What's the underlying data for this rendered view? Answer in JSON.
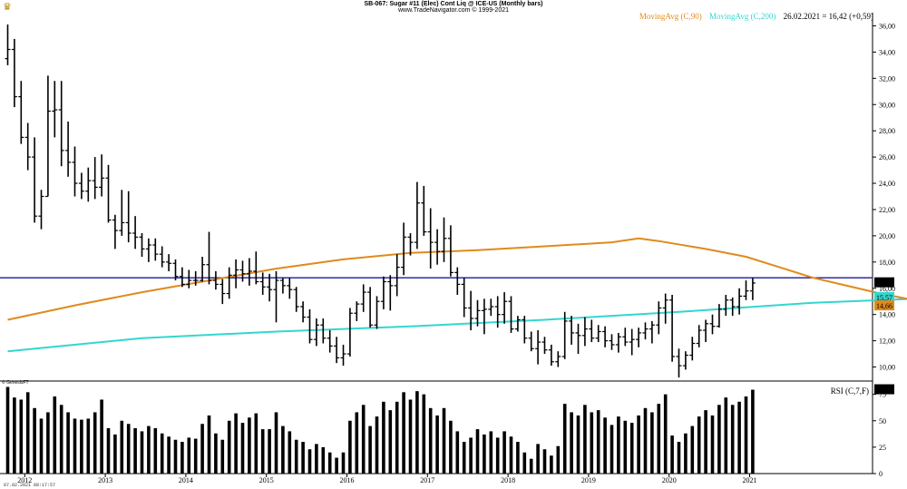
{
  "header": {
    "title": "SB-067: Sugar #11 (Elec) Cont Liq @ ICE-US (Monthly bars)",
    "subtitle": "www.TradeNavigator.com © 1999-2021"
  },
  "legend": {
    "ma90": "MovingAvg (C,90)",
    "ma200": "MovingAvg (C,200)",
    "quote": "26.02.2021 = 16,42 (+0,59)"
  },
  "rsi_label": "RSI (C,7,F)",
  "credit": "© GenesisFT",
  "timestamp": "07.02.2021 08:17:57",
  "colors": {
    "bars": "#000000",
    "ma90": "#e08a1c",
    "ma200": "#33d6d0",
    "hline": "#1a1a9c",
    "rsi": "#000000"
  },
  "chart_data": [
    {
      "type": "ohlc",
      "title": "SB-067: Sugar #11 (Elec) Cont Liq @ ICE-US (Monthly bars)",
      "ylim": [
        9,
        37
      ],
      "yticks": [
        "10,00",
        "12,00",
        "14,00",
        "16,00",
        "18,00",
        "20,00",
        "22,00",
        "24,00",
        "26,00",
        "28,00",
        "30,00",
        "32,00",
        "34,00",
        "36,00"
      ],
      "xticks": [
        "2012",
        "2013",
        "2014",
        "2015",
        "2016",
        "2017",
        "2018",
        "2019",
        "2020",
        "2021"
      ],
      "price_labels": {
        "last": "16,42",
        "ma200": "15,57",
        "ma90": "14,66"
      },
      "hline": 16.8,
      "bars": [
        [
          33.5,
          36.1,
          33.0,
          34.2
        ],
        [
          34.2,
          35.0,
          29.8,
          30.6
        ],
        [
          30.6,
          31.8,
          27.0,
          27.5
        ],
        [
          27.5,
          28.6,
          25.0,
          26.0
        ],
        [
          26.0,
          27.5,
          21.0,
          21.5
        ],
        [
          21.5,
          23.5,
          20.5,
          23.0
        ],
        [
          23.0,
          32.2,
          23.0,
          29.5
        ],
        [
          29.5,
          31.8,
          27.5,
          29.6
        ],
        [
          29.6,
          31.8,
          25.3,
          26.5
        ],
        [
          26.5,
          28.7,
          24.5,
          25.6
        ],
        [
          25.6,
          26.8,
          23.0,
          24.0
        ],
        [
          24.0,
          24.8,
          22.8,
          23.4
        ],
        [
          23.4,
          25.2,
          22.6,
          24.2
        ],
        [
          24.2,
          26.0,
          22.8,
          23.7
        ],
        [
          23.7,
          26.2,
          23.0,
          24.4
        ],
        [
          24.4,
          25.4,
          21.0,
          21.2
        ],
        [
          21.2,
          21.6,
          19.0,
          20.4
        ],
        [
          20.4,
          23.5,
          20.0,
          21.0
        ],
        [
          21.0,
          23.4,
          19.5,
          20.2
        ],
        [
          20.2,
          21.5,
          19.0,
          19.9
        ],
        [
          19.9,
          20.2,
          18.4,
          19.0
        ],
        [
          19.0,
          19.8,
          18.0,
          19.3
        ],
        [
          19.3,
          19.8,
          18.1,
          18.6
        ],
        [
          18.6,
          19.2,
          17.6,
          18.0
        ],
        [
          18.0,
          18.6,
          17.3,
          17.9
        ],
        [
          17.9,
          18.2,
          16.6,
          16.9
        ],
        [
          16.9,
          17.6,
          16.1,
          16.3
        ],
        [
          16.3,
          17.4,
          16.0,
          16.6
        ],
        [
          16.6,
          17.3,
          16.2,
          16.6
        ],
        [
          16.6,
          18.4,
          16.5,
          17.8
        ],
        [
          17.8,
          20.3,
          16.3,
          16.6
        ],
        [
          16.6,
          17.3,
          15.9,
          16.3
        ],
        [
          16.3,
          16.7,
          14.8,
          15.6
        ],
        [
          15.6,
          17.6,
          15.2,
          17.0
        ],
        [
          17.0,
          18.2,
          16.0,
          17.4
        ],
        [
          17.4,
          18.1,
          16.5,
          17.1
        ],
        [
          17.1,
          18.3,
          16.2,
          17.3
        ],
        [
          17.3,
          18.8,
          16.3,
          16.5
        ],
        [
          16.5,
          17.2,
          15.5,
          16.1
        ],
        [
          16.1,
          17.1,
          15.0,
          15.9
        ],
        [
          15.9,
          17.3,
          13.4,
          16.6
        ],
        [
          16.6,
          16.8,
          15.6,
          16.2
        ],
        [
          16.2,
          16.8,
          15.2,
          15.9
        ],
        [
          15.9,
          16.1,
          14.2,
          14.6
        ],
        [
          14.6,
          15.0,
          13.4,
          13.8
        ],
        [
          13.8,
          14.4,
          11.8,
          12.1
        ],
        [
          12.1,
          13.7,
          11.6,
          13.2
        ],
        [
          13.2,
          13.7,
          11.8,
          12.2
        ],
        [
          12.2,
          12.8,
          11.1,
          11.6
        ],
        [
          11.6,
          12.3,
          10.3,
          10.7
        ],
        [
          10.7,
          11.7,
          10.1,
          11.0
        ],
        [
          11.0,
          14.5,
          10.8,
          14.1
        ],
        [
          14.1,
          15.0,
          13.5,
          14.8
        ],
        [
          14.8,
          16.3,
          14.2,
          15.7
        ],
        [
          15.7,
          16.1,
          13.0,
          13.2
        ],
        [
          13.2,
          15.4,
          12.9,
          15.0
        ],
        [
          15.0,
          16.9,
          14.4,
          16.5
        ],
        [
          16.5,
          17.0,
          14.3,
          16.2
        ],
        [
          16.2,
          18.6,
          15.4,
          17.6
        ],
        [
          17.6,
          21.0,
          17.0,
          19.9
        ],
        [
          19.9,
          20.2,
          18.5,
          19.5
        ],
        [
          19.5,
          24.1,
          19.0,
          22.5
        ],
        [
          22.5,
          23.8,
          20.0,
          20.3
        ],
        [
          20.3,
          22.1,
          17.5,
          19.5
        ],
        [
          19.5,
          20.5,
          17.8,
          18.8
        ],
        [
          18.8,
          21.4,
          18.0,
          19.8
        ],
        [
          19.8,
          20.8,
          16.9,
          17.2
        ],
        [
          17.2,
          17.6,
          15.5,
          16.3
        ],
        [
          16.3,
          16.8,
          13.8,
          14.5
        ],
        [
          14.5,
          15.8,
          12.8,
          13.7
        ],
        [
          13.7,
          15.1,
          13.1,
          14.3
        ],
        [
          14.3,
          15.2,
          12.5,
          14.4
        ],
        [
          14.4,
          15.2,
          13.9,
          14.6
        ],
        [
          14.6,
          15.4,
          13.0,
          14.0
        ],
        [
          14.0,
          15.7,
          13.3,
          15.0
        ],
        [
          15.0,
          15.4,
          12.6,
          12.9
        ],
        [
          12.9,
          13.9,
          12.7,
          13.6
        ],
        [
          13.6,
          13.9,
          11.8,
          12.2
        ],
        [
          12.2,
          12.7,
          11.2,
          11.4
        ],
        [
          11.4,
          12.8,
          10.2,
          11.9
        ],
        [
          11.9,
          12.3,
          11.0,
          11.3
        ],
        [
          11.3,
          11.7,
          10.1,
          10.4
        ],
        [
          10.4,
          11.2,
          10.0,
          10.8
        ],
        [
          10.8,
          14.2,
          10.6,
          13.5
        ],
        [
          13.5,
          13.9,
          11.7,
          12.6
        ],
        [
          12.6,
          13.3,
          11.0,
          12.4
        ],
        [
          12.4,
          13.8,
          11.6,
          12.9
        ],
        [
          12.9,
          13.6,
          11.9,
          12.2
        ],
        [
          12.2,
          13.2,
          11.9,
          12.7
        ],
        [
          12.7,
          13.1,
          11.5,
          12.0
        ],
        [
          12.0,
          12.5,
          11.3,
          11.7
        ],
        [
          11.7,
          12.6,
          11.1,
          12.3
        ],
        [
          12.3,
          13.0,
          11.6,
          11.9
        ],
        [
          11.9,
          12.9,
          10.9,
          12.1
        ],
        [
          12.1,
          13.0,
          11.5,
          12.6
        ],
        [
          12.6,
          13.4,
          12.1,
          12.9
        ],
        [
          12.9,
          13.5,
          11.8,
          13.2
        ],
        [
          13.2,
          15.0,
          12.5,
          14.5
        ],
        [
          14.5,
          15.6,
          13.3,
          15.1
        ],
        [
          15.1,
          15.5,
          10.4,
          10.8
        ],
        [
          10.8,
          11.4,
          9.2,
          10.1
        ],
        [
          10.1,
          11.2,
          9.8,
          10.9
        ],
        [
          10.9,
          12.3,
          10.5,
          11.8
        ],
        [
          11.8,
          13.2,
          11.5,
          12.8
        ],
        [
          12.8,
          13.6,
          11.9,
          13.3
        ],
        [
          13.3,
          14.0,
          12.5,
          13.1
        ],
        [
          13.1,
          14.8,
          13.0,
          14.4
        ],
        [
          14.4,
          15.5,
          13.9,
          15.1
        ],
        [
          15.1,
          15.3,
          13.9,
          14.6
        ],
        [
          14.6,
          16.0,
          14.0,
          15.4
        ],
        [
          15.4,
          16.6,
          15.1,
          15.8
        ],
        [
          15.8,
          16.8,
          15.1,
          16.4
        ]
      ],
      "ma90_points": [
        [
          0,
          13.6
        ],
        [
          10,
          14.7
        ],
        [
          20,
          15.7
        ],
        [
          30,
          16.6
        ],
        [
          40,
          17.5
        ],
        [
          50,
          18.2
        ],
        [
          60,
          18.7
        ],
        [
          70,
          18.9
        ],
        [
          80,
          19.2
        ],
        [
          90,
          19.5
        ],
        [
          94,
          19.8
        ],
        [
          97,
          19.6
        ],
        [
          104,
          19.0
        ],
        [
          110,
          18.4
        ],
        [
          115,
          17.6
        ],
        [
          120,
          16.8
        ],
        [
          125,
          16.2
        ],
        [
          130,
          15.6
        ],
        [
          135,
          15.1
        ],
        [
          140,
          14.8
        ],
        [
          146,
          14.6
        ],
        [
          160,
          14.6
        ]
      ],
      "ma200_points": [
        [
          0,
          11.2
        ],
        [
          20,
          12.2
        ],
        [
          40,
          12.7
        ],
        [
          60,
          13.1
        ],
        [
          80,
          13.6
        ],
        [
          100,
          14.2
        ],
        [
          120,
          14.9
        ],
        [
          140,
          15.3
        ],
        [
          160,
          15.6
        ]
      ]
    },
    {
      "type": "bar",
      "title": "RSI (C,7,F)",
      "ylim": [
        0,
        85
      ],
      "yticks": [
        "0",
        "25",
        "50",
        "75"
      ],
      "last_label": "79,37",
      "values": [
        82,
        72,
        70,
        77,
        62,
        52,
        58,
        73,
        65,
        58,
        52,
        51,
        52,
        58,
        70,
        43,
        37,
        50,
        47,
        43,
        40,
        45,
        43,
        38,
        35,
        32,
        30,
        34,
        33,
        47,
        55,
        38,
        32,
        50,
        57,
        48,
        53,
        57,
        42,
        42,
        58,
        45,
        40,
        32,
        30,
        23,
        28,
        25,
        20,
        15,
        20,
        50,
        58,
        65,
        45,
        54,
        68,
        60,
        68,
        77,
        70,
        78,
        75,
        62,
        55,
        62,
        50,
        40,
        30,
        34,
        42,
        37,
        40,
        34,
        40,
        35,
        30,
        20,
        14,
        28,
        23,
        17,
        26,
        66,
        58,
        55,
        65,
        58,
        60,
        53,
        46,
        54,
        50,
        48,
        55,
        62,
        58,
        66,
        75,
        36,
        30,
        38,
        45,
        54,
        60,
        55,
        65,
        72,
        65,
        68,
        73,
        79.37
      ]
    }
  ]
}
